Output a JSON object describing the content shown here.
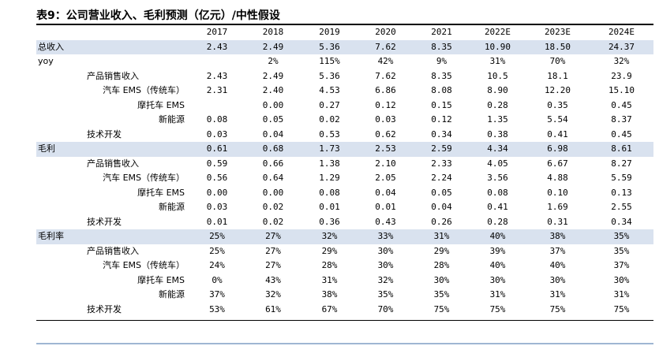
{
  "title": "表9：公司营业收入、毛利预测（亿元）/中性假设",
  "columns": [
    "2017",
    "2018",
    "2019",
    "2020",
    "2021",
    "2022E",
    "2023E",
    "2024E"
  ],
  "rows": [
    {
      "label": "总收入",
      "level": 0,
      "section": true,
      "values": [
        "2.43",
        "2.49",
        "5.36",
        "7.62",
        "8.35",
        "10.90",
        "18.50",
        "24.37"
      ]
    },
    {
      "label": "yoy",
      "level": 0,
      "section": false,
      "values": [
        "",
        "2%",
        "115%",
        "42%",
        "9%",
        "31%",
        "70%",
        "32%"
      ]
    },
    {
      "label": "产品销售收入",
      "level": 1,
      "section": false,
      "values": [
        "2.43",
        "2.49",
        "5.36",
        "7.62",
        "8.35",
        "10.5",
        "18.1",
        "23.9"
      ]
    },
    {
      "label": "汽车 EMS（传统车）",
      "level": 2,
      "section": false,
      "values": [
        "2.31",
        "2.40",
        "4.53",
        "6.86",
        "8.08",
        "8.90",
        "12.20",
        "15.10"
      ]
    },
    {
      "label": "摩托车 EMS",
      "level": 2,
      "section": false,
      "values": [
        "",
        "0.00",
        "0.27",
        "0.12",
        "0.15",
        "0.28",
        "0.35",
        "0.45"
      ]
    },
    {
      "label": "新能源",
      "level": 2,
      "section": false,
      "values": [
        "0.08",
        "0.05",
        "0.02",
        "0.03",
        "0.12",
        "1.35",
        "5.54",
        "8.37"
      ]
    },
    {
      "label": "技术开发",
      "level": 1,
      "section": false,
      "values": [
        "0.03",
        "0.04",
        "0.53",
        "0.62",
        "0.34",
        "0.38",
        "0.41",
        "0.45"
      ]
    },
    {
      "label": "毛利",
      "level": 0,
      "section": true,
      "values": [
        "0.61",
        "0.68",
        "1.73",
        "2.53",
        "2.59",
        "4.34",
        "6.98",
        "8.61"
      ]
    },
    {
      "label": "产品销售收入",
      "level": 1,
      "section": false,
      "values": [
        "0.59",
        "0.66",
        "1.38",
        "2.10",
        "2.33",
        "4.05",
        "6.67",
        "8.27"
      ]
    },
    {
      "label": "汽车 EMS（传统车）",
      "level": 2,
      "section": false,
      "values": [
        "0.56",
        "0.64",
        "1.29",
        "2.05",
        "2.24",
        "3.56",
        "4.88",
        "5.59"
      ]
    },
    {
      "label": "摩托车 EMS",
      "level": 2,
      "section": false,
      "values": [
        "0.00",
        "0.00",
        "0.08",
        "0.04",
        "0.05",
        "0.08",
        "0.10",
        "0.13"
      ]
    },
    {
      "label": "新能源",
      "level": 2,
      "section": false,
      "values": [
        "0.03",
        "0.02",
        "0.01",
        "0.01",
        "0.04",
        "0.41",
        "1.69",
        "2.55"
      ]
    },
    {
      "label": "技术开发",
      "level": 1,
      "section": false,
      "values": [
        "0.01",
        "0.02",
        "0.36",
        "0.43",
        "0.26",
        "0.28",
        "0.31",
        "0.34"
      ]
    },
    {
      "label": "毛利率",
      "level": 0,
      "section": true,
      "values": [
        "25%",
        "27%",
        "32%",
        "33%",
        "31%",
        "40%",
        "38%",
        "35%"
      ]
    },
    {
      "label": "产品销售收入",
      "level": 1,
      "section": false,
      "values": [
        "25%",
        "27%",
        "29%",
        "30%",
        "29%",
        "39%",
        "37%",
        "35%"
      ]
    },
    {
      "label": "汽车 EMS（传统车）",
      "level": 2,
      "section": false,
      "values": [
        "24%",
        "27%",
        "28%",
        "30%",
        "28%",
        "40%",
        "40%",
        "37%"
      ]
    },
    {
      "label": "摩托车 EMS",
      "level": 2,
      "section": false,
      "values": [
        "0%",
        "43%",
        "31%",
        "32%",
        "30%",
        "30%",
        "30%",
        "30%"
      ]
    },
    {
      "label": "新能源",
      "level": 2,
      "section": false,
      "values": [
        "37%",
        "32%",
        "38%",
        "35%",
        "35%",
        "31%",
        "31%",
        "31%"
      ]
    },
    {
      "label": "技术开发",
      "level": 1,
      "section": false,
      "values": [
        "53%",
        "61%",
        "67%",
        "70%",
        "75%",
        "75%",
        "75%",
        "75%"
      ]
    }
  ]
}
